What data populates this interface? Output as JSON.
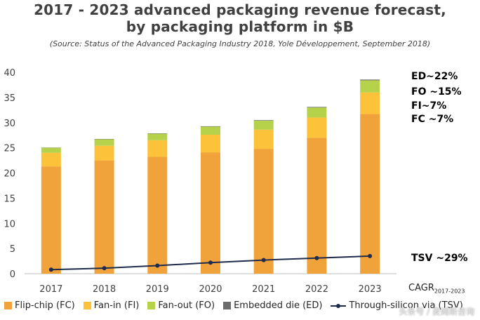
{
  "chart_data": {
    "type": "bar",
    "stacked": true,
    "title": "2017 - 2023 advanced packaging revenue forecast,",
    "title_line2": "by packaging platform in $B",
    "subtitle": "(Source: Status of the Advanced Packaging Industry 2018, Yole Développement, September 2018)",
    "categories": [
      "2017",
      "2018",
      "2019",
      "2020",
      "2021",
      "2022",
      "2023"
    ],
    "ylim": [
      0,
      40
    ],
    "yticks": [
      0,
      5,
      10,
      15,
      20,
      25,
      30,
      35,
      40
    ],
    "series": [
      {
        "name": "Flip-chip (FC)",
        "color": "#f0a33a",
        "values": [
          21.3,
          22.5,
          23.2,
          24.1,
          24.8,
          27.0,
          31.7
        ]
      },
      {
        "name": "Fan-in (FI)",
        "color": "#fcc33a",
        "values": [
          2.7,
          2.9,
          3.3,
          3.5,
          3.8,
          4.0,
          4.3
        ]
      },
      {
        "name": "Fan-out (FO)",
        "color": "#b6d14a",
        "values": [
          1.0,
          1.3,
          1.3,
          1.6,
          1.8,
          2.0,
          2.4
        ]
      },
      {
        "name": "Embedded die (ED)",
        "color": "#6b6b6b",
        "values": [
          0.05,
          0.06,
          0.07,
          0.08,
          0.1,
          0.12,
          0.15
        ]
      }
    ],
    "line_series": {
      "name": "Through-silicon via (TSV)",
      "color": "#1f2b4d",
      "values": [
        0.8,
        1.1,
        1.6,
        2.2,
        2.7,
        3.1,
        3.5
      ]
    },
    "cagr_title": "CAGR",
    "cagr_subscript": "2017-2023",
    "cagr_labels": [
      {
        "text": "ED~22%",
        "color": "#7f7f7f"
      },
      {
        "text": "FO ~15%",
        "color": "#b6d14a"
      },
      {
        "text": "FI~7%",
        "color": "#fcc33a"
      },
      {
        "text": "FC ~7%",
        "color": "#f0a33a"
      },
      {
        "text": "TSV ~29%",
        "color": "#1f2b4d"
      }
    ]
  },
  "watermark": "头条号 / 麦姆斯咨询"
}
